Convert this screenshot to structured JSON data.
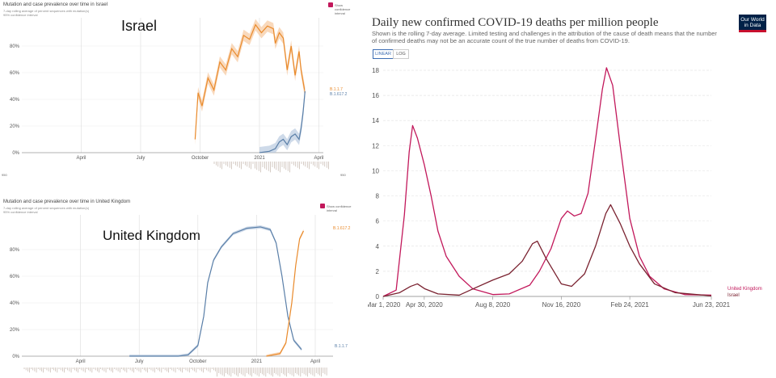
{
  "israel_panel": {
    "title": "Mutation and case prevalence over time in Israel",
    "legend_line": "7-day rolling average of percent sequences with mutation(s)",
    "legend_ci": "95% confidence interval",
    "label": "Israel",
    "checkbox_label": "Show confidence interval",
    "end_label_1": "B.1.1.7",
    "end_label_2": "B.1.617.2",
    "strip_left": "950",
    "strip_right": "950"
  },
  "uk_panel": {
    "title": "Mutation and case prevalence over time in United Kingdom",
    "legend_line": "7-day rolling average of percent sequences with mutation(s)",
    "legend_ci": "95% confidence interval",
    "label": "United Kingdom",
    "checkbox_label": "Show confidence interval",
    "end_label_1": "B.1.617.2",
    "end_label_2": "B.1.1.7"
  },
  "owid": {
    "title": "Daily new confirmed COVID-19 deaths per million people",
    "subtitle": "Shown is the rolling 7-day average. Limited testing and challenges in the attribution of the cause of death means that the number of confirmed deaths may not be an accurate count of the true number of deaths from COVID-19.",
    "btn_linear": "LINEAR",
    "btn_log": "LOG",
    "logo_line1": "Our World",
    "logo_line2": "in Data"
  },
  "colors": {
    "alpha": "#e98a2b",
    "alpha_ci": "#f7c9a0",
    "delta": "#5a7fa8",
    "delta_ci": "#b9cbe0",
    "uk_line": "#c2185b",
    "israel_line": "#7a2230"
  },
  "chart_data": [
    {
      "type": "line",
      "title": "Mutation and case prevalence over time in Israel",
      "x_ticks": [
        "April",
        "July",
        "October",
        "2021",
        "April"
      ],
      "y_ticks": [
        "0%",
        "20%",
        "40%",
        "60%",
        "80%"
      ],
      "ylim": [
        0,
        100
      ],
      "series": [
        {
          "name": "B.1.1.7",
          "points": [
            [
              9.75,
              10
            ],
            [
              9.9,
              45
            ],
            [
              10.1,
              35
            ],
            [
              10.4,
              56
            ],
            [
              10.7,
              47
            ],
            [
              11.0,
              68
            ],
            [
              11.3,
              62
            ],
            [
              11.6,
              78
            ],
            [
              11.9,
              72
            ],
            [
              12.2,
              88
            ],
            [
              12.5,
              85
            ],
            [
              12.8,
              96
            ],
            [
              13.1,
              90
            ],
            [
              13.4,
              95
            ],
            [
              13.7,
              93
            ],
            [
              13.8,
              82
            ],
            [
              14.0,
              90
            ],
            [
              14.2,
              86
            ],
            [
              14.4,
              62
            ],
            [
              14.6,
              80
            ],
            [
              14.8,
              58
            ],
            [
              15.0,
              76
            ],
            [
              15.1,
              62
            ],
            [
              15.3,
              45
            ]
          ]
        },
        {
          "name": "B.1.617.2",
          "points": [
            [
              13.0,
              0
            ],
            [
              13.5,
              1
            ],
            [
              13.8,
              3
            ],
            [
              14.0,
              8
            ],
            [
              14.2,
              10
            ],
            [
              14.4,
              6
            ],
            [
              14.6,
              12
            ],
            [
              14.8,
              14
            ],
            [
              15.0,
              10
            ],
            [
              15.1,
              18
            ],
            [
              15.2,
              30
            ],
            [
              15.3,
              46
            ]
          ]
        }
      ]
    },
    {
      "type": "line",
      "title": "Mutation and case prevalence over time in United Kingdom",
      "x_ticks": [
        "April",
        "July",
        "October",
        "2021",
        "April"
      ],
      "y_ticks": [
        "0%",
        "20%",
        "40%",
        "60%",
        "80%"
      ],
      "ylim": [
        0,
        100
      ],
      "series": [
        {
          "name": "B.1.1.7",
          "points": [
            [
              6.5,
              0
            ],
            [
              9.0,
              0
            ],
            [
              9.5,
              1
            ],
            [
              10.0,
              8
            ],
            [
              10.3,
              30
            ],
            [
              10.5,
              55
            ],
            [
              10.8,
              72
            ],
            [
              11.2,
              82
            ],
            [
              11.8,
              92
            ],
            [
              12.5,
              96
            ],
            [
              13.2,
              97
            ],
            [
              13.7,
              95
            ],
            [
              14.0,
              85
            ],
            [
              14.3,
              60
            ],
            [
              14.6,
              30
            ],
            [
              14.9,
              12
            ],
            [
              15.3,
              5
            ]
          ]
        },
        {
          "name": "B.1.617.2",
          "points": [
            [
              13.5,
              0
            ],
            [
              14.2,
              2
            ],
            [
              14.5,
              10
            ],
            [
              14.8,
              40
            ],
            [
              15.0,
              68
            ],
            [
              15.2,
              88
            ],
            [
              15.4,
              94
            ]
          ]
        }
      ]
    },
    {
      "type": "line",
      "title": "Daily new confirmed COVID-19 deaths per million people",
      "x_ticks": [
        "Mar 1, 2020",
        "Apr 30, 2020",
        "Aug 8, 2020",
        "Nov 16, 2020",
        "Feb 24, 2021",
        "Jun 23, 2021"
      ],
      "y_ticks": [
        "0",
        "2",
        "4",
        "6",
        "8",
        "10",
        "12",
        "14",
        "16",
        "18"
      ],
      "ylim": [
        0,
        18.5
      ],
      "xlim": [
        "2020-03-01",
        "2021-06-23"
      ],
      "series": [
        {
          "name": "United Kingdom",
          "points": [
            [
              "2020-03-01",
              0
            ],
            [
              "2020-03-20",
              0.5
            ],
            [
              "2020-04-01",
              6.5
            ],
            [
              "2020-04-08",
              11.5
            ],
            [
              "2020-04-13",
              13.6
            ],
            [
              "2020-04-20",
              12.6
            ],
            [
              "2020-04-30",
              10.5
            ],
            [
              "2020-05-10",
              8.0
            ],
            [
              "2020-05-20",
              5.2
            ],
            [
              "2020-06-01",
              3.2
            ],
            [
              "2020-06-20",
              1.6
            ],
            [
              "2020-07-10",
              0.6
            ],
            [
              "2020-08-08",
              0.15
            ],
            [
              "2020-09-01",
              0.2
            ],
            [
              "2020-10-01",
              0.9
            ],
            [
              "2020-10-15",
              2.0
            ],
            [
              "2020-11-01",
              3.8
            ],
            [
              "2020-11-16",
              6.2
            ],
            [
              "2020-11-25",
              6.8
            ],
            [
              "2020-12-05",
              6.4
            ],
            [
              "2020-12-15",
              6.6
            ],
            [
              "2020-12-25",
              8.2
            ],
            [
              "2021-01-05",
              12.5
            ],
            [
              "2021-01-15",
              16.5
            ],
            [
              "2021-01-21",
              18.2
            ],
            [
              "2021-01-30",
              16.8
            ],
            [
              "2021-02-10",
              12.0
            ],
            [
              "2021-02-24",
              6.2
            ],
            [
              "2021-03-10",
              3.2
            ],
            [
              "2021-03-25",
              1.6
            ],
            [
              "2021-04-15",
              0.6
            ],
            [
              "2021-05-15",
              0.15
            ],
            [
              "2021-06-23",
              0.1
            ]
          ]
        },
        {
          "name": "Israel",
          "points": [
            [
              "2020-03-01",
              0
            ],
            [
              "2020-03-25",
              0.3
            ],
            [
              "2020-04-10",
              0.8
            ],
            [
              "2020-04-20",
              1.0
            ],
            [
              "2020-05-01",
              0.6
            ],
            [
              "2020-05-20",
              0.2
            ],
            [
              "2020-06-20",
              0.1
            ],
            [
              "2020-07-10",
              0.6
            ],
            [
              "2020-08-08",
              1.3
            ],
            [
              "2020-09-01",
              1.8
            ],
            [
              "2020-09-20",
              2.8
            ],
            [
              "2020-10-05",
              4.2
            ],
            [
              "2020-10-12",
              4.4
            ],
            [
              "2020-10-25",
              3.0
            ],
            [
              "2020-11-16",
              1.0
            ],
            [
              "2020-12-01",
              0.8
            ],
            [
              "2020-12-20",
              1.8
            ],
            [
              "2021-01-05",
              4.0
            ],
            [
              "2021-01-20",
              6.6
            ],
            [
              "2021-01-27",
              7.3
            ],
            [
              "2021-02-10",
              5.8
            ],
            [
              "2021-02-24",
              4.0
            ],
            [
              "2021-03-10",
              2.6
            ],
            [
              "2021-04-01",
              1.0
            ],
            [
              "2021-05-01",
              0.3
            ],
            [
              "2021-06-23",
              0.05
            ]
          ]
        }
      ]
    }
  ]
}
